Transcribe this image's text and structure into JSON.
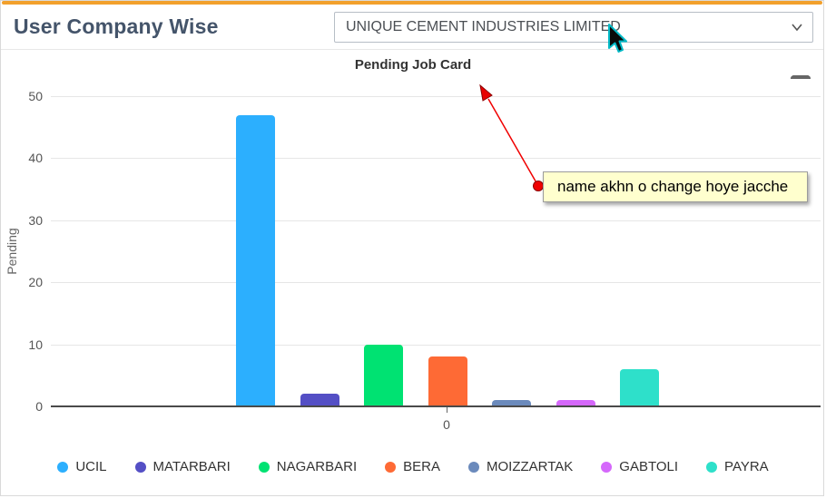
{
  "header": {
    "title": "User Company Wise",
    "company_select": {
      "value": "UNIQUE CEMENT INDUSTRIES LIMITED",
      "chevron_icon": "chevron-down-icon"
    }
  },
  "chart_menu_icon": "hamburger-icon",
  "annotation": {
    "text": "name akhn o change hoye jacche",
    "arrow_color": "#ff0000",
    "box_background": "#ffffce"
  },
  "chart_data": {
    "type": "bar",
    "title": "Pending Job Card",
    "xlabel": "",
    "ylabel": "Pending",
    "x_tick_label": "0",
    "ylim": [
      0,
      50
    ],
    "yticks": [
      0,
      10,
      20,
      30,
      40,
      50
    ],
    "grid": true,
    "legend_position": "bottom",
    "series": [
      {
        "name": "UCIL",
        "value": 47,
        "color": "#2caffe"
      },
      {
        "name": "MATARBARI",
        "value": 2,
        "color": "#544fc5"
      },
      {
        "name": "NAGARBARI",
        "value": 10,
        "color": "#00e272"
      },
      {
        "name": "BERA",
        "value": 8,
        "color": "#fe6a35"
      },
      {
        "name": "MOIZZARTAK",
        "value": 1,
        "color": "#6b8abc"
      },
      {
        "name": "GABTOLI",
        "value": 1,
        "color": "#d568fb"
      },
      {
        "name": "PAYRA",
        "value": 6,
        "color": "#2ee0ca"
      }
    ]
  }
}
